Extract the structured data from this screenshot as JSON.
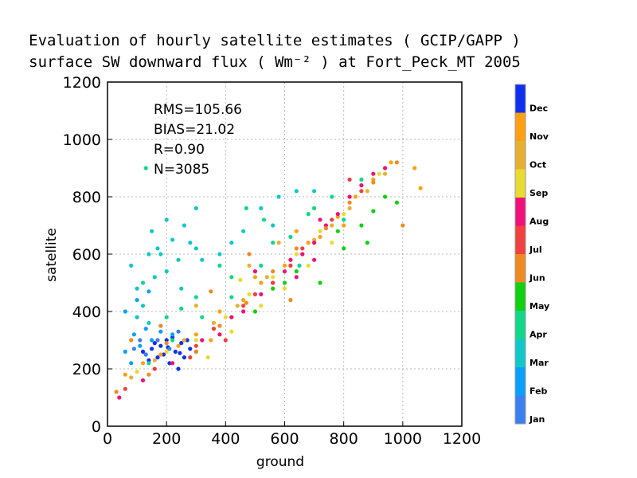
{
  "chart_data": {
    "type": "scatter",
    "title": "Evaluation of hourly satellite estimates ( GCIP/GAPP )",
    "subtitle": "surface SW downward flux ( Wm⁻² ) at Fort_Peck_MT 2005",
    "xlabel": "ground",
    "ylabel": "satellite",
    "xlim": [
      0,
      1200
    ],
    "ylim": [
      0,
      1200
    ],
    "xticks": [
      "0",
      "200",
      "400",
      "600",
      "800",
      "1000",
      "1200"
    ],
    "yticks": [
      "0",
      "200",
      "400",
      "600",
      "800",
      "1000",
      "1200"
    ],
    "grid": true,
    "stats": [
      "RMS=105.66",
      "BIAS=21.02",
      "R=0.90",
      "N=3085"
    ],
    "colorbar": {
      "placement": "right",
      "labels": [
        "Jan",
        "Feb",
        "Mar",
        "Apr",
        "May",
        "Jun",
        "Jul",
        "Aug",
        "Sep",
        "Oct",
        "Nov",
        "Dec"
      ],
      "colors": [
        "#3a80f0",
        "#0aa0ff",
        "#10c8c8",
        "#10d888",
        "#10d010",
        "#f08a20",
        "#f04040",
        "#f0107a",
        "#e8dc30",
        "#e8b030",
        "#ffa010",
        "#1030f0"
      ]
    },
    "series": [
      {
        "color_index": 11,
        "points": [
          [
            120,
            260
          ],
          [
            150,
            270
          ],
          [
            170,
            240
          ],
          [
            180,
            280
          ],
          [
            200,
            300
          ],
          [
            210,
            220
          ],
          [
            230,
            260
          ],
          [
            250,
            290
          ],
          [
            260,
            240
          ],
          [
            280,
            270
          ],
          [
            140,
            230
          ],
          [
            190,
            250
          ],
          [
            220,
            310
          ],
          [
            240,
            200
          ],
          [
            270,
            300
          ],
          [
            160,
            290
          ],
          [
            300,
            260
          ],
          [
            130,
            250
          ],
          [
            205,
            275
          ],
          [
            245,
            255
          ]
        ]
      },
      {
        "color_index": 10,
        "points": [
          [
            60,
            180
          ],
          [
            120,
            220
          ],
          [
            180,
            250
          ],
          [
            240,
            280
          ],
          [
            300,
            320
          ],
          [
            380,
            400
          ],
          [
            460,
            440
          ],
          [
            520,
            500
          ],
          [
            600,
            560
          ],
          [
            660,
            600
          ],
          [
            720,
            660
          ],
          [
            780,
            730
          ],
          [
            840,
            800
          ],
          [
            900,
            860
          ],
          [
            960,
            920
          ],
          [
            680,
            640
          ],
          [
            560,
            480
          ],
          [
            420,
            380
          ],
          [
            350,
            300
          ],
          [
            1040,
            900
          ],
          [
            1060,
            830
          ],
          [
            800,
            700
          ],
          [
            500,
            520
          ],
          [
            640,
            680
          ]
        ]
      },
      {
        "color_index": 9,
        "points": [
          [
            80,
            170
          ],
          [
            160,
            230
          ],
          [
            260,
            300
          ],
          [
            360,
            360
          ],
          [
            440,
            420
          ],
          [
            540,
            520
          ],
          [
            620,
            580
          ],
          [
            700,
            650
          ],
          [
            760,
            700
          ],
          [
            820,
            760
          ],
          [
            880,
            820
          ],
          [
            940,
            880
          ],
          [
            300,
            420
          ],
          [
            480,
            560
          ],
          [
            580,
            640
          ],
          [
            700,
            760
          ]
        ]
      },
      {
        "color_index": 8,
        "points": [
          [
            100,
            190
          ],
          [
            200,
            260
          ],
          [
            300,
            300
          ],
          [
            400,
            380
          ],
          [
            480,
            460
          ],
          [
            560,
            520
          ],
          [
            640,
            600
          ],
          [
            720,
            680
          ],
          [
            800,
            740
          ],
          [
            860,
            820
          ],
          [
            920,
            880
          ],
          [
            420,
            330
          ],
          [
            520,
            420
          ],
          [
            600,
            480
          ],
          [
            680,
            560
          ],
          [
            760,
            640
          ],
          [
            340,
            240
          ],
          [
            450,
            510
          ]
        ]
      },
      {
        "color_index": 7,
        "points": [
          [
            40,
            100
          ],
          [
            120,
            160
          ],
          [
            220,
            220
          ],
          [
            320,
            300
          ],
          [
            420,
            380
          ],
          [
            520,
            460
          ],
          [
            600,
            540
          ],
          [
            660,
            600
          ],
          [
            700,
            640
          ],
          [
            740,
            700
          ],
          [
            780,
            740
          ],
          [
            820,
            800
          ],
          [
            860,
            840
          ],
          [
            900,
            880
          ],
          [
            940,
            900
          ],
          [
            560,
            500
          ],
          [
            620,
            580
          ],
          [
            500,
            540
          ],
          [
            640,
            520
          ],
          [
            720,
            720
          ],
          [
            380,
            320
          ],
          [
            460,
            400
          ],
          [
            700,
            580
          ]
        ]
      },
      {
        "color_index": 6,
        "points": [
          [
            60,
            130
          ],
          [
            160,
            200
          ],
          [
            280,
            240
          ],
          [
            360,
            340
          ],
          [
            460,
            420
          ],
          [
            560,
            500
          ],
          [
            660,
            620
          ],
          [
            760,
            720
          ],
          [
            860,
            820
          ],
          [
            620,
            560
          ],
          [
            400,
            300
          ],
          [
            300,
            280
          ],
          [
            500,
            460
          ],
          [
            820,
            860
          ]
        ]
      },
      {
        "color_index": 5,
        "points": [
          [
            30,
            120
          ],
          [
            80,
            300
          ],
          [
            140,
            180
          ],
          [
            200,
            290
          ],
          [
            300,
            260
          ],
          [
            380,
            350
          ],
          [
            470,
            430
          ],
          [
            560,
            540
          ],
          [
            640,
            620
          ],
          [
            740,
            690
          ],
          [
            820,
            780
          ],
          [
            900,
            850
          ],
          [
            980,
            920
          ],
          [
            1000,
            700
          ],
          [
            480,
            600
          ],
          [
            350,
            470
          ],
          [
            620,
            440
          ],
          [
            180,
            350
          ]
        ]
      },
      {
        "color_index": 4,
        "points": [
          [
            720,
            500
          ],
          [
            800,
            620
          ],
          [
            860,
            700
          ],
          [
            900,
            750
          ],
          [
            640,
            540
          ],
          [
            560,
            480
          ],
          [
            940,
            800
          ],
          [
            500,
            400
          ],
          [
            880,
            640
          ],
          [
            980,
            780
          ],
          [
            600,
            500
          ],
          [
            780,
            680
          ]
        ]
      },
      {
        "color_index": 3,
        "points": [
          [
            140,
            220
          ],
          [
            220,
            300
          ],
          [
            320,
            380
          ],
          [
            420,
            450
          ],
          [
            520,
            560
          ],
          [
            620,
            660
          ],
          [
            700,
            760
          ],
          [
            760,
            800
          ],
          [
            120,
            500
          ],
          [
            200,
            380
          ],
          [
            300,
            450
          ],
          [
            420,
            520
          ],
          [
            560,
            640
          ],
          [
            680,
            740
          ],
          [
            860,
            860
          ],
          [
            250,
            410
          ],
          [
            380,
            560
          ],
          [
            530,
            720
          ],
          [
            130,
            900
          ],
          [
            470,
            760
          ],
          [
            800,
            720
          ],
          [
            650,
            560
          ]
        ]
      },
      {
        "color_index": 2,
        "points": [
          [
            80,
            560
          ],
          [
            100,
            480
          ],
          [
            120,
            420
          ],
          [
            140,
            600
          ],
          [
            150,
            680
          ],
          [
            170,
            620
          ],
          [
            200,
            720
          ],
          [
            220,
            650
          ],
          [
            240,
            580
          ],
          [
            260,
            700
          ],
          [
            280,
            640
          ],
          [
            300,
            620
          ],
          [
            200,
            540
          ],
          [
            160,
            520
          ],
          [
            250,
            480
          ],
          [
            100,
            380
          ],
          [
            140,
            360
          ],
          [
            320,
            580
          ],
          [
            380,
            600
          ],
          [
            420,
            640
          ],
          [
            460,
            680
          ],
          [
            520,
            760
          ],
          [
            580,
            800
          ],
          [
            640,
            820
          ],
          [
            700,
            820
          ],
          [
            560,
            700
          ],
          [
            300,
            760
          ],
          [
            180,
            600
          ]
        ]
      },
      {
        "color_index": 1,
        "points": [
          [
            60,
            260
          ],
          [
            90,
            320
          ],
          [
            110,
            280
          ],
          [
            130,
            340
          ],
          [
            150,
            300
          ],
          [
            180,
            330
          ],
          [
            80,
            220
          ],
          [
            220,
            320
          ],
          [
            100,
            440
          ],
          [
            140,
            470
          ],
          [
            60,
            400
          ]
        ]
      },
      {
        "color_index": 0,
        "points": [
          [
            90,
            270
          ],
          [
            130,
            250
          ],
          [
            170,
            300
          ],
          [
            210,
            270
          ],
          [
            110,
            300
          ],
          [
            240,
            330
          ]
        ]
      }
    ]
  }
}
